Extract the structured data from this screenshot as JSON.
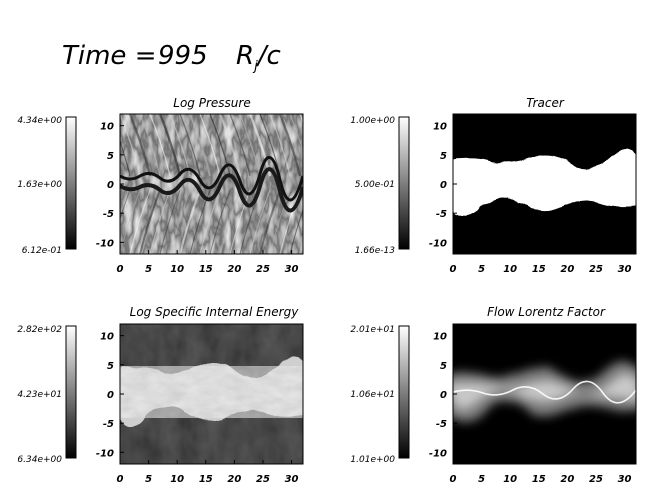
{
  "header": {
    "time_label": "Time =",
    "time_value": "995",
    "unit_main": "R",
    "unit_sub": "j",
    "unit_tail": "/c"
  },
  "chart_data": [
    {
      "type": "heatmap",
      "title": "Log Pressure",
      "x_ticks": [
        "0",
        "5",
        "10",
        "15",
        "20",
        "25",
        "30"
      ],
      "y_ticks": [
        "10",
        "5",
        "0",
        "-5",
        "-10"
      ],
      "xlim": [
        0,
        32
      ],
      "ylim": [
        -12,
        12
      ],
      "colorbar": {
        "max": "4.34e+00",
        "mid": "1.63e+00",
        "min": "6.12e-01"
      },
      "colormap": "grayscale",
      "structure": "diagonal shock pattern everywhere, dark jet boundary near y=0"
    },
    {
      "type": "heatmap",
      "title": "Tracer",
      "x_ticks": [
        "0",
        "5",
        "10",
        "15",
        "20",
        "25",
        "30"
      ],
      "y_ticks": [
        "10",
        "5",
        "0",
        "-5",
        "-10"
      ],
      "xlim": [
        0,
        32
      ],
      "ylim": [
        -12,
        12
      ],
      "colorbar": {
        "max": "1.00e+00",
        "mid": "5.00e-01",
        "min": "1.66e-13"
      },
      "colormap": "grayscale",
      "structure": "white band between y=-4 and y=4, black elsewhere"
    },
    {
      "type": "heatmap",
      "title": "Log Specific Internal Energy",
      "x_ticks": [
        "0",
        "5",
        "10",
        "15",
        "20",
        "25",
        "30"
      ],
      "y_ticks": [
        "10",
        "5",
        "0",
        "-5",
        "-10"
      ],
      "xlim": [
        0,
        32
      ],
      "ylim": [
        -12,
        12
      ],
      "colorbar": {
        "max": "2.82e+02",
        "mid": "4.23e+01",
        "min": "6.34e+00"
      },
      "colormap": "grayscale",
      "structure": "bright band between y=-4 and y=4, dark elsewhere"
    },
    {
      "type": "heatmap",
      "title": "Flow Lorentz Factor",
      "x_ticks": [
        "0",
        "5",
        "10",
        "15",
        "20",
        "25",
        "30"
      ],
      "y_ticks": [
        "10",
        "5",
        "0",
        "-5",
        "-10"
      ],
      "xlim": [
        0,
        32
      ],
      "ylim": [
        -12,
        12
      ],
      "colorbar": {
        "max": "2.01e+01",
        "mid": "1.06e+01",
        "min": "1.01e+00"
      },
      "colormap": "grayscale",
      "structure": "diffuse glow along y=0 with a thin bright ridge at the centre"
    }
  ]
}
